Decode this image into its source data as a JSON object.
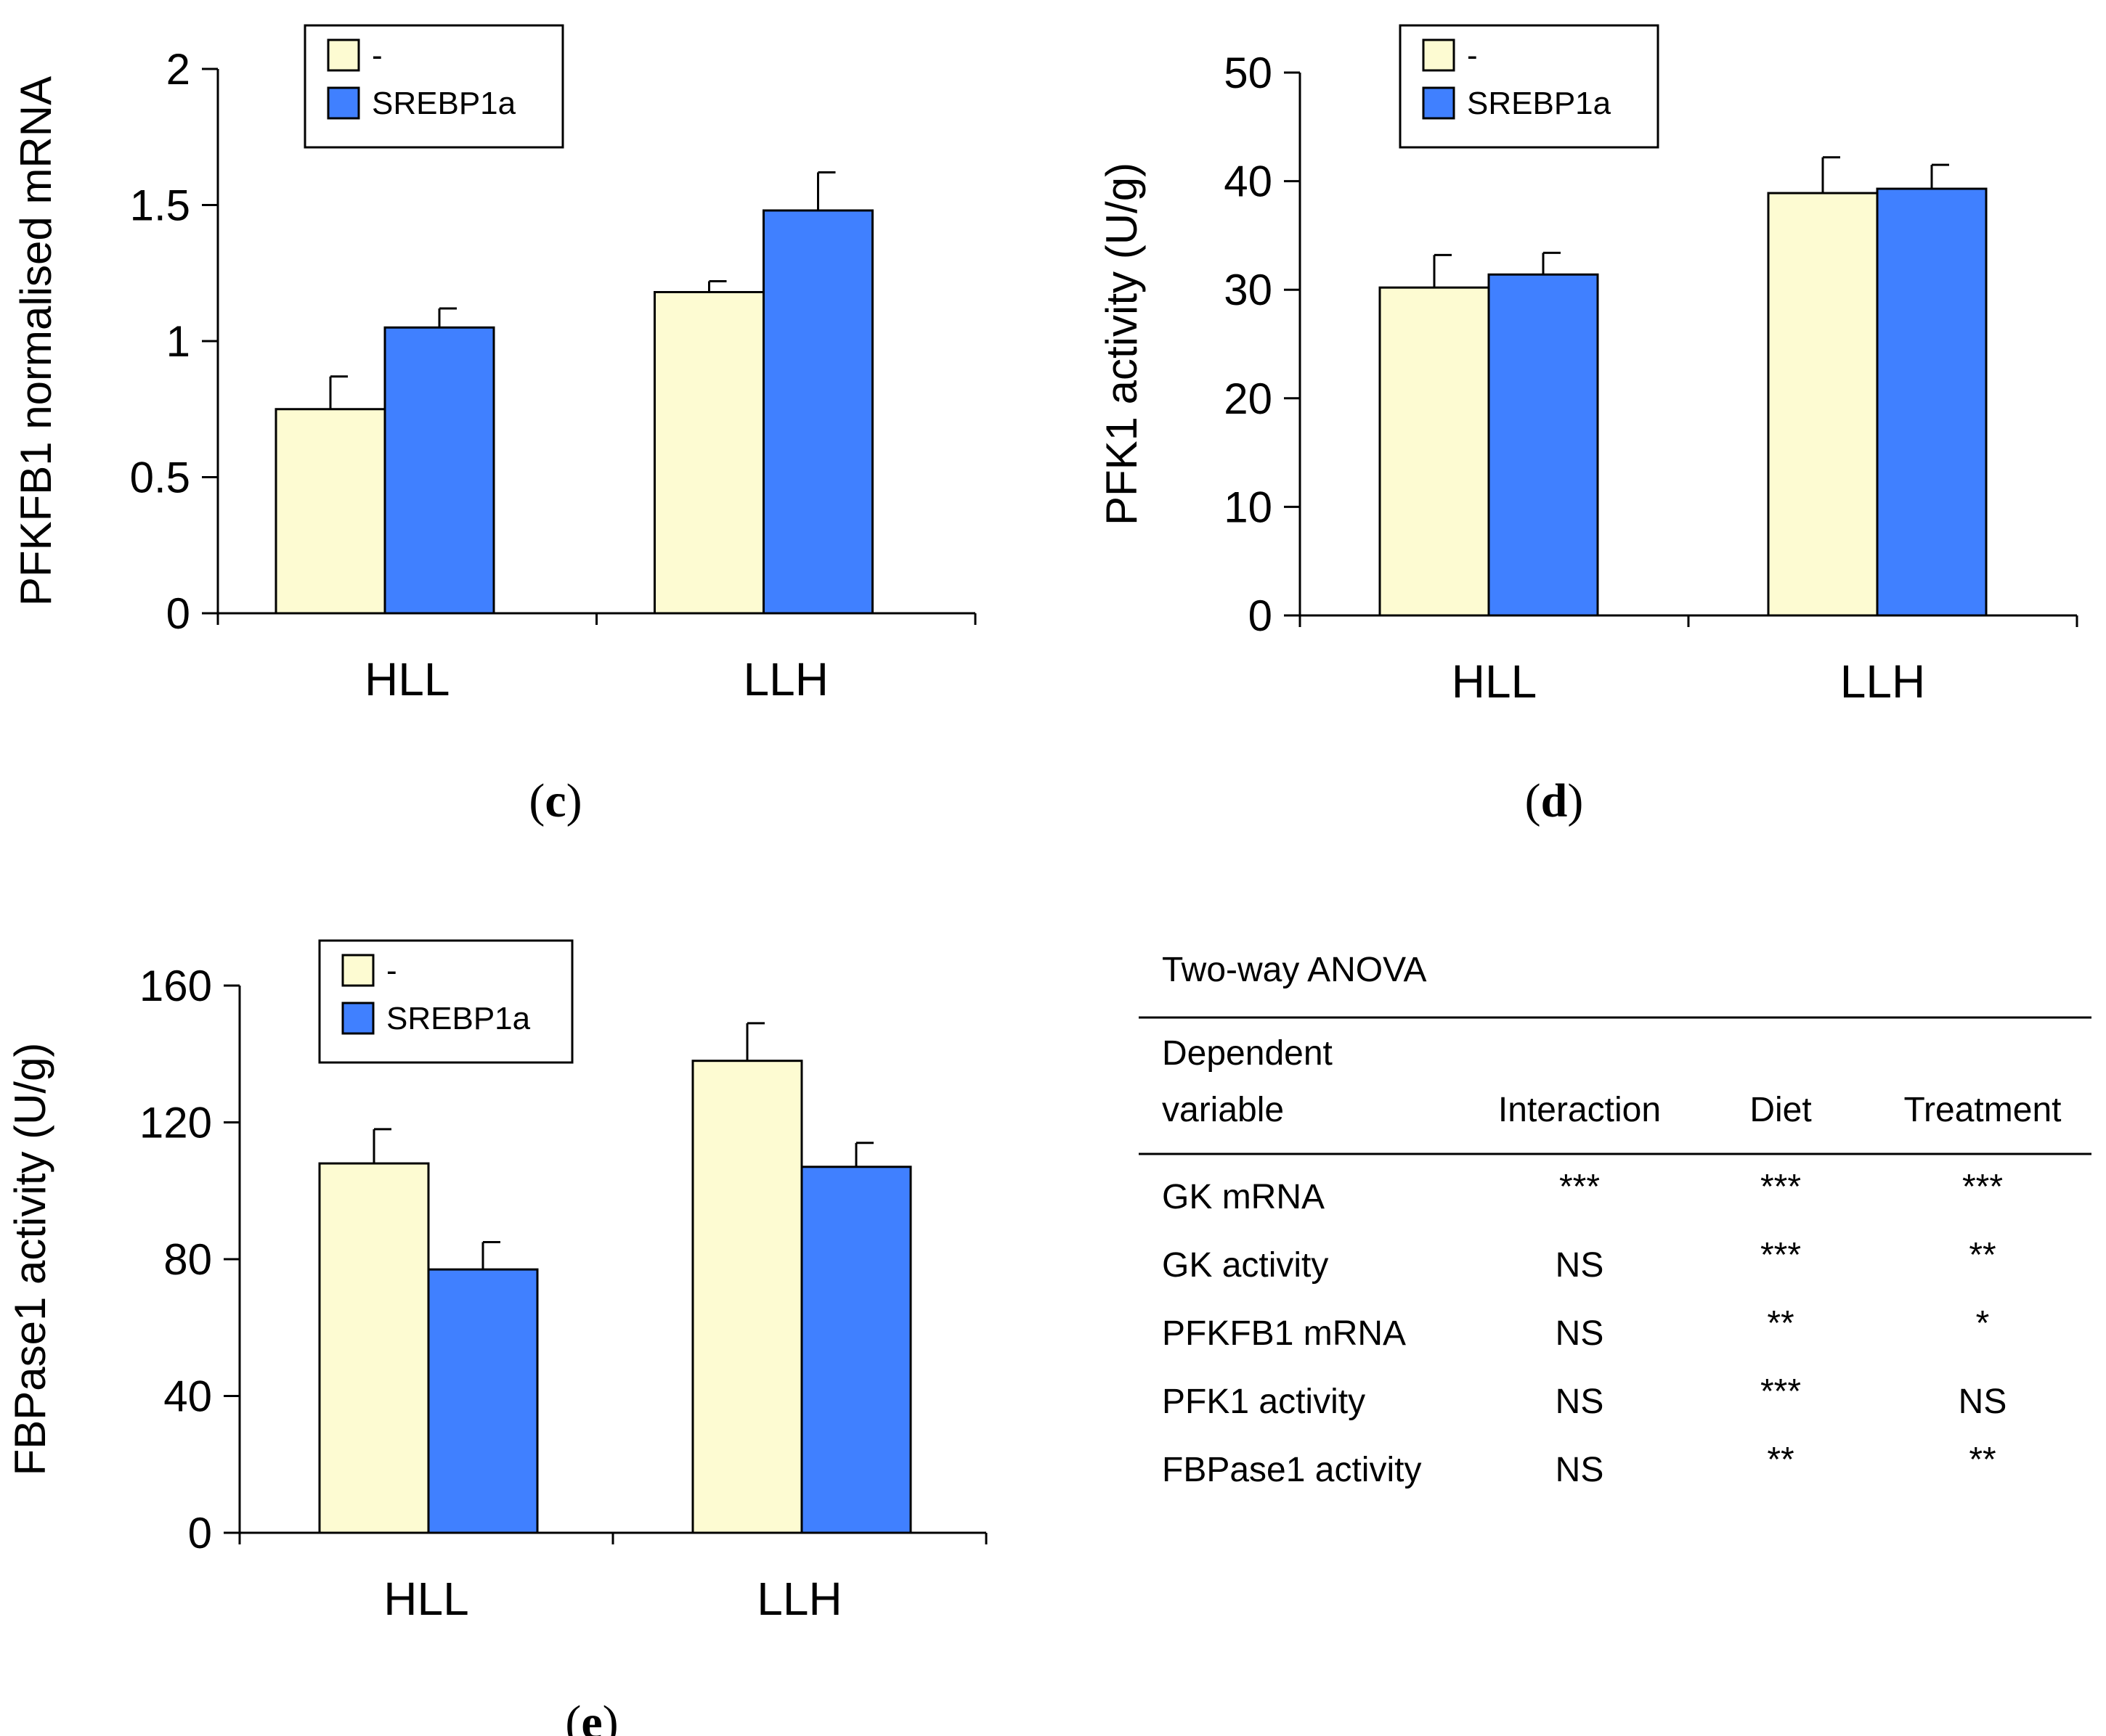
{
  "colors": {
    "control": "#FDFBD2",
    "srebp": "#4080FF",
    "axis": "#000000"
  },
  "chart_data": [
    {
      "panel": "c",
      "type": "bar",
      "ylabel": "PFKFB1 normalised mRNA",
      "ylim": [
        0,
        2
      ],
      "yticks": [
        0,
        0.5,
        1,
        1.5,
        2
      ],
      "ytick_labels": [
        "0",
        "0.5",
        "1",
        "1.5",
        "2"
      ],
      "categories": [
        "HLL",
        "LLH"
      ],
      "series": [
        {
          "name": "-",
          "values": [
            0.75,
            1.18
          ],
          "errors": [
            0.12,
            0.04
          ]
        },
        {
          "name": "SREBP1a",
          "values": [
            1.05,
            1.48
          ],
          "errors": [
            0.07,
            0.14
          ]
        }
      ],
      "legend": "top-left",
      "label_open": "(",
      "label_letter": "c",
      "label_close": ")"
    },
    {
      "panel": "d",
      "type": "bar",
      "ylabel": "PFK1 activity (U/g)",
      "ylim": [
        0,
        50
      ],
      "yticks": [
        0,
        10,
        20,
        30,
        40,
        50
      ],
      "ytick_labels": [
        "0",
        "10",
        "20",
        "30",
        "40",
        "50"
      ],
      "categories": [
        "HLL",
        "LLH"
      ],
      "series": [
        {
          "name": "-",
          "values": [
            30.2,
            38.9
          ],
          "errors": [
            3.0,
            3.3
          ]
        },
        {
          "name": "SREBP1a",
          "values": [
            31.4,
            39.3
          ],
          "errors": [
            2.0,
            2.2
          ]
        }
      ],
      "legend": "top-left",
      "label_open": "(",
      "label_letter": "d",
      "label_close": ")"
    },
    {
      "panel": "e",
      "type": "bar",
      "ylabel": "FBPase1 activity (U/g)",
      "ylim": [
        0,
        160
      ],
      "yticks": [
        0,
        40,
        80,
        120,
        160
      ],
      "ytick_labels": [
        "0",
        "40",
        "80",
        "120",
        "160"
      ],
      "categories": [
        "HLL",
        "LLH"
      ],
      "series": [
        {
          "name": "-",
          "values": [
            108,
            138
          ],
          "errors": [
            10,
            11
          ]
        },
        {
          "name": "SREBP1a",
          "values": [
            77,
            107
          ],
          "errors": [
            8,
            7
          ]
        }
      ],
      "legend": "top-left",
      "label_open": "(",
      "label_letter": "e",
      "label_close": ")"
    },
    {
      "type": "table",
      "title": "Two-way ANOVA",
      "header_line1": "Dependent",
      "header_line2": [
        "variable",
        "Interaction",
        "Diet",
        "Treatment"
      ],
      "rows": [
        [
          "GK mRNA",
          "***",
          "***",
          "***"
        ],
        [
          "GK activity",
          "NS",
          "***",
          "**"
        ],
        [
          "PFKFB1 mRNA",
          "NS",
          "**",
          "*"
        ],
        [
          "PFK1 activity",
          "NS",
          "***",
          "NS"
        ],
        [
          "FBPase1 activity",
          "NS",
          "**",
          "**"
        ]
      ]
    }
  ]
}
